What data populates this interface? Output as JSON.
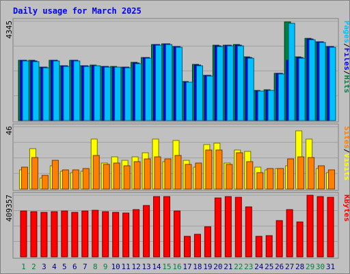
{
  "chart_data": {
    "type": "bar",
    "title": "Daily usage for March 2025",
    "title_color": "#0000ff",
    "categories": [
      "1",
      "2",
      "3",
      "4",
      "5",
      "6",
      "7",
      "8",
      "9",
      "10",
      "11",
      "12",
      "13",
      "14",
      "15",
      "16",
      "17",
      "18",
      "19",
      "20",
      "21",
      "22",
      "23",
      "24",
      "25",
      "26",
      "27",
      "28",
      "29",
      "30",
      "31"
    ],
    "weekend_days": [
      "1",
      "2",
      "8",
      "9",
      "15",
      "16",
      "22",
      "23",
      "29",
      "30"
    ],
    "weekend_color": "#008040",
    "weekday_color": "#000080",
    "panels": [
      {
        "name": "hits-files-pages",
        "ymax_label": "4345",
        "ymax": 4345,
        "grid": true,
        "series": [
          {
            "name": "Hits",
            "color": "#008040",
            "values": [
              2640,
              2630,
              2350,
              2650,
              2410,
              2650,
              2400,
              2420,
              2380,
              2360,
              2340,
              2540,
              2770,
              3330,
              3360,
              3250,
              1700,
              2450,
              1990,
              3290,
              3310,
              3320,
              2780,
              1310,
              1340,
              2070,
              4310,
              2780,
              3590,
              3460,
              3250
            ]
          },
          {
            "name": "Files",
            "color": "#0000ff",
            "values": [
              2630,
              2620,
              2340,
              2640,
              2400,
              2640,
              2390,
              2410,
              2370,
              2350,
              2330,
              2530,
              2760,
              3320,
              3350,
              3240,
              1690,
              2440,
              1980,
              3280,
              3300,
              3310,
              2770,
              1300,
              1330,
              2060,
              2650,
              2770,
              3580,
              3450,
              3240
            ]
          },
          {
            "name": "Pages",
            "color": "#00c0ff",
            "values": [
              2600,
              2590,
              2320,
              2610,
              2380,
              2610,
              2370,
              2390,
              2350,
              2330,
              2310,
              2500,
              2730,
              3290,
              3320,
              3210,
              1670,
              2410,
              1960,
              3250,
              3270,
              3280,
              2740,
              1280,
              1310,
              2040,
              4260,
              2740,
              3550,
              3420,
              3210
            ]
          }
        ]
      },
      {
        "name": "visits-sites",
        "ymax_label": "46",
        "ymax": 46,
        "grid": true,
        "series": [
          {
            "name": "Visits",
            "color": "#ffff00",
            "values": [
              14,
              30,
              8,
              17,
              13,
              12,
              13,
              37,
              19,
              24,
              21,
              24,
              27,
              37,
              20,
              36,
              21,
              16,
              33,
              34,
              19,
              29,
              28,
              16,
              14,
              15,
              17,
              43,
              37,
              15,
              12
            ]
          },
          {
            "name": "Sites",
            "color": "#ff8000",
            "values": [
              16,
              23,
              10,
              21,
              14,
              14,
              15,
              25,
              18,
              19,
              17,
              20,
              22,
              24,
              22,
              25,
              18,
              19,
              29,
              29,
              18,
              27,
              20,
              12,
              15,
              15,
              22,
              24,
              23,
              17,
              14
            ]
          }
        ]
      },
      {
        "name": "kbytes",
        "ymax_label": "409357",
        "ymax": 409357,
        "grid": true,
        "series": [
          {
            "name": "KBytes",
            "color": "#ff0000",
            "values": [
              305000,
              302000,
              296000,
              298000,
              303000,
              297000,
              305000,
              309000,
              302000,
              297000,
              290000,
              315000,
              343000,
              398000,
              400000,
              305000,
              138000,
              151000,
              201000,
              392000,
              400000,
              397000,
              334000,
              136000,
              142000,
              241000,
              315000,
              230000,
              409357,
              399000,
              394000
            ]
          }
        ]
      }
    ],
    "right_labels": [
      {
        "panel": "hits-files-pages",
        "parts": [
          {
            "text": "Pages",
            "color": "#00c0ff"
          },
          {
            "text": "/",
            "color": "#000000"
          },
          {
            "text": "Files",
            "color": "#0000ff"
          },
          {
            "text": "/",
            "color": "#000000"
          },
          {
            "text": "Hits",
            "color": "#008040"
          }
        ]
      },
      {
        "panel": "visits-sites",
        "parts": [
          {
            "text": "Sites",
            "color": "#ff8000"
          },
          {
            "text": "/",
            "color": "#000000"
          },
          {
            "text": "Visits",
            "color": "#ffff00"
          }
        ]
      },
      {
        "panel": "kbytes",
        "parts": [
          {
            "text": "KBytes",
            "color": "#ff0000"
          }
        ]
      }
    ]
  }
}
